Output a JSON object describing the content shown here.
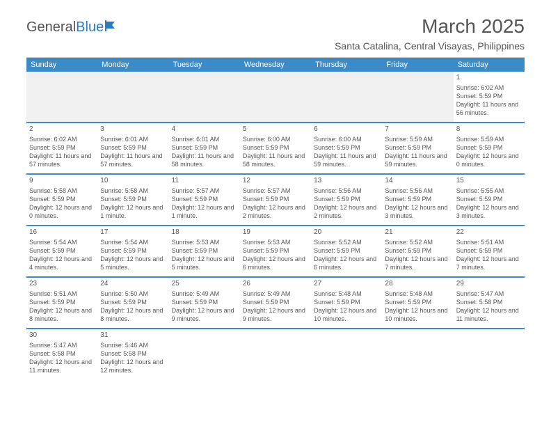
{
  "logo": {
    "text_general": "General",
    "text_blue": "Blue"
  },
  "header": {
    "month_title": "March 2025",
    "location": "Santa Catalina, Central Visayas, Philippines"
  },
  "colors": {
    "header_bg": "#3b8bc9",
    "text": "#555555",
    "border_thin": "#cccccc",
    "empty_bg": "#f4f4f4"
  },
  "day_names": [
    "Sunday",
    "Monday",
    "Tuesday",
    "Wednesday",
    "Thursday",
    "Friday",
    "Saturday"
  ],
  "weeks": [
    [
      null,
      null,
      null,
      null,
      null,
      null,
      {
        "d": "1",
        "sunrise": "Sunrise: 6:02 AM",
        "sunset": "Sunset: 5:59 PM",
        "daylight": "Daylight: 11 hours and 56 minutes."
      }
    ],
    [
      {
        "d": "2",
        "sunrise": "Sunrise: 6:02 AM",
        "sunset": "Sunset: 5:59 PM",
        "daylight": "Daylight: 11 hours and 57 minutes."
      },
      {
        "d": "3",
        "sunrise": "Sunrise: 6:01 AM",
        "sunset": "Sunset: 5:59 PM",
        "daylight": "Daylight: 11 hours and 57 minutes."
      },
      {
        "d": "4",
        "sunrise": "Sunrise: 6:01 AM",
        "sunset": "Sunset: 5:59 PM",
        "daylight": "Daylight: 11 hours and 58 minutes."
      },
      {
        "d": "5",
        "sunrise": "Sunrise: 6:00 AM",
        "sunset": "Sunset: 5:59 PM",
        "daylight": "Daylight: 11 hours and 58 minutes."
      },
      {
        "d": "6",
        "sunrise": "Sunrise: 6:00 AM",
        "sunset": "Sunset: 5:59 PM",
        "daylight": "Daylight: 11 hours and 59 minutes."
      },
      {
        "d": "7",
        "sunrise": "Sunrise: 5:59 AM",
        "sunset": "Sunset: 5:59 PM",
        "daylight": "Daylight: 11 hours and 59 minutes."
      },
      {
        "d": "8",
        "sunrise": "Sunrise: 5:59 AM",
        "sunset": "Sunset: 5:59 PM",
        "daylight": "Daylight: 12 hours and 0 minutes."
      }
    ],
    [
      {
        "d": "9",
        "sunrise": "Sunrise: 5:58 AM",
        "sunset": "Sunset: 5:59 PM",
        "daylight": "Daylight: 12 hours and 0 minutes."
      },
      {
        "d": "10",
        "sunrise": "Sunrise: 5:58 AM",
        "sunset": "Sunset: 5:59 PM",
        "daylight": "Daylight: 12 hours and 1 minute."
      },
      {
        "d": "11",
        "sunrise": "Sunrise: 5:57 AM",
        "sunset": "Sunset: 5:59 PM",
        "daylight": "Daylight: 12 hours and 1 minute."
      },
      {
        "d": "12",
        "sunrise": "Sunrise: 5:57 AM",
        "sunset": "Sunset: 5:59 PM",
        "daylight": "Daylight: 12 hours and 2 minutes."
      },
      {
        "d": "13",
        "sunrise": "Sunrise: 5:56 AM",
        "sunset": "Sunset: 5:59 PM",
        "daylight": "Daylight: 12 hours and 2 minutes."
      },
      {
        "d": "14",
        "sunrise": "Sunrise: 5:56 AM",
        "sunset": "Sunset: 5:59 PM",
        "daylight": "Daylight: 12 hours and 3 minutes."
      },
      {
        "d": "15",
        "sunrise": "Sunrise: 5:55 AM",
        "sunset": "Sunset: 5:59 PM",
        "daylight": "Daylight: 12 hours and 3 minutes."
      }
    ],
    [
      {
        "d": "16",
        "sunrise": "Sunrise: 5:54 AM",
        "sunset": "Sunset: 5:59 PM",
        "daylight": "Daylight: 12 hours and 4 minutes."
      },
      {
        "d": "17",
        "sunrise": "Sunrise: 5:54 AM",
        "sunset": "Sunset: 5:59 PM",
        "daylight": "Daylight: 12 hours and 5 minutes."
      },
      {
        "d": "18",
        "sunrise": "Sunrise: 5:53 AM",
        "sunset": "Sunset: 5:59 PM",
        "daylight": "Daylight: 12 hours and 5 minutes."
      },
      {
        "d": "19",
        "sunrise": "Sunrise: 5:53 AM",
        "sunset": "Sunset: 5:59 PM",
        "daylight": "Daylight: 12 hours and 6 minutes."
      },
      {
        "d": "20",
        "sunrise": "Sunrise: 5:52 AM",
        "sunset": "Sunset: 5:59 PM",
        "daylight": "Daylight: 12 hours and 6 minutes."
      },
      {
        "d": "21",
        "sunrise": "Sunrise: 5:52 AM",
        "sunset": "Sunset: 5:59 PM",
        "daylight": "Daylight: 12 hours and 7 minutes."
      },
      {
        "d": "22",
        "sunrise": "Sunrise: 5:51 AM",
        "sunset": "Sunset: 5:59 PM",
        "daylight": "Daylight: 12 hours and 7 minutes."
      }
    ],
    [
      {
        "d": "23",
        "sunrise": "Sunrise: 5:51 AM",
        "sunset": "Sunset: 5:59 PM",
        "daylight": "Daylight: 12 hours and 8 minutes."
      },
      {
        "d": "24",
        "sunrise": "Sunrise: 5:50 AM",
        "sunset": "Sunset: 5:59 PM",
        "daylight": "Daylight: 12 hours and 8 minutes."
      },
      {
        "d": "25",
        "sunrise": "Sunrise: 5:49 AM",
        "sunset": "Sunset: 5:59 PM",
        "daylight": "Daylight: 12 hours and 9 minutes."
      },
      {
        "d": "26",
        "sunrise": "Sunrise: 5:49 AM",
        "sunset": "Sunset: 5:59 PM",
        "daylight": "Daylight: 12 hours and 9 minutes."
      },
      {
        "d": "27",
        "sunrise": "Sunrise: 5:48 AM",
        "sunset": "Sunset: 5:59 PM",
        "daylight": "Daylight: 12 hours and 10 minutes."
      },
      {
        "d": "28",
        "sunrise": "Sunrise: 5:48 AM",
        "sunset": "Sunset: 5:59 PM",
        "daylight": "Daylight: 12 hours and 10 minutes."
      },
      {
        "d": "29",
        "sunrise": "Sunrise: 5:47 AM",
        "sunset": "Sunset: 5:58 PM",
        "daylight": "Daylight: 12 hours and 11 minutes."
      }
    ],
    [
      {
        "d": "30",
        "sunrise": "Sunrise: 5:47 AM",
        "sunset": "Sunset: 5:58 PM",
        "daylight": "Daylight: 12 hours and 11 minutes."
      },
      {
        "d": "31",
        "sunrise": "Sunrise: 5:46 AM",
        "sunset": "Sunset: 5:58 PM",
        "daylight": "Daylight: 12 hours and 12 minutes."
      },
      null,
      null,
      null,
      null,
      null
    ]
  ]
}
